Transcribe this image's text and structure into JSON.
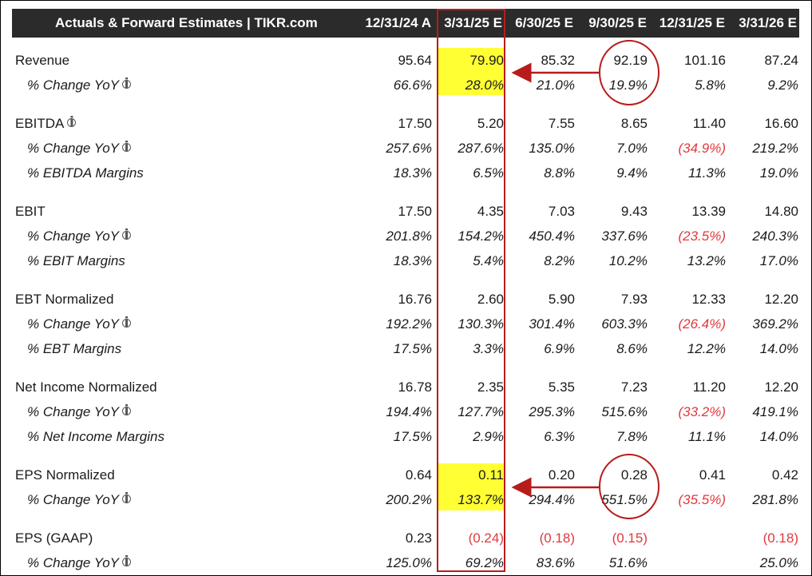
{
  "header": {
    "title": "Actuals & Forward Estimates | TIKR.com",
    "columns": [
      "12/31/24 A",
      "3/31/25 E",
      "6/30/25 E",
      "9/30/25 E",
      "12/31/25 E",
      "3/31/26 E"
    ]
  },
  "colors": {
    "header_bg": "#2b2b2b",
    "highlight": "#ffff33",
    "annotation_red": "#b71c1c",
    "negative_text": "#e0393e"
  },
  "rows": [
    {
      "label": "Revenue",
      "info": false,
      "sub": false,
      "values": [
        "95.64",
        "79.90",
        "85.32",
        "92.19",
        "101.16",
        "87.24"
      ]
    },
    {
      "label": "% Change YoY",
      "info": true,
      "sub": true,
      "values": [
        "66.6%",
        "28.0%",
        "21.0%",
        "19.9%",
        "5.8%",
        "9.2%"
      ]
    },
    {
      "label": "EBITDA",
      "info": true,
      "sub": false,
      "values": [
        "17.50",
        "5.20",
        "7.55",
        "8.65",
        "11.40",
        "16.60"
      ]
    },
    {
      "label": "% Change YoY",
      "info": true,
      "sub": true,
      "values": [
        "257.6%",
        "287.6%",
        "135.0%",
        "7.0%",
        "(34.9%)",
        "219.2%"
      ]
    },
    {
      "label": "% EBITDA Margins",
      "info": false,
      "sub": true,
      "values": [
        "18.3%",
        "6.5%",
        "8.8%",
        "9.4%",
        "11.3%",
        "19.0%"
      ]
    },
    {
      "label": "EBIT",
      "info": false,
      "sub": false,
      "values": [
        "17.50",
        "4.35",
        "7.03",
        "9.43",
        "13.39",
        "14.80"
      ]
    },
    {
      "label": "% Change YoY",
      "info": true,
      "sub": true,
      "values": [
        "201.8%",
        "154.2%",
        "450.4%",
        "337.6%",
        "(23.5%)",
        "240.3%"
      ]
    },
    {
      "label": "% EBIT Margins",
      "info": false,
      "sub": true,
      "values": [
        "18.3%",
        "5.4%",
        "8.2%",
        "10.2%",
        "13.2%",
        "17.0%"
      ]
    },
    {
      "label": "EBT Normalized",
      "info": false,
      "sub": false,
      "values": [
        "16.76",
        "2.60",
        "5.90",
        "7.93",
        "12.33",
        "12.20"
      ]
    },
    {
      "label": "% Change YoY",
      "info": true,
      "sub": true,
      "values": [
        "192.2%",
        "130.3%",
        "301.4%",
        "603.3%",
        "(26.4%)",
        "369.2%"
      ]
    },
    {
      "label": "% EBT Margins",
      "info": false,
      "sub": true,
      "values": [
        "17.5%",
        "3.3%",
        "6.9%",
        "8.6%",
        "12.2%",
        "14.0%"
      ]
    },
    {
      "label": "Net Income Normalized",
      "info": false,
      "sub": false,
      "values": [
        "16.78",
        "2.35",
        "5.35",
        "7.23",
        "11.20",
        "12.20"
      ]
    },
    {
      "label": "% Change YoY",
      "info": true,
      "sub": true,
      "values": [
        "194.4%",
        "127.7%",
        "295.3%",
        "515.6%",
        "(33.2%)",
        "419.1%"
      ]
    },
    {
      "label": "% Net Income Margins",
      "info": false,
      "sub": true,
      "values": [
        "17.5%",
        "2.9%",
        "6.3%",
        "7.8%",
        "11.1%",
        "14.0%"
      ]
    },
    {
      "label": "EPS Normalized",
      "info": false,
      "sub": false,
      "values": [
        "0.64",
        "0.11",
        "0.20",
        "0.28",
        "0.41",
        "0.42"
      ]
    },
    {
      "label": "% Change YoY",
      "info": true,
      "sub": true,
      "values": [
        "200.2%",
        "133.7%",
        "294.4%",
        "551.5%",
        "(35.5%)",
        "281.8%"
      ]
    },
    {
      "label": "EPS (GAAP)",
      "info": false,
      "sub": false,
      "values": [
        "0.23",
        "(0.24)",
        "(0.18)",
        "(0.15)",
        "",
        "(0.18)"
      ]
    },
    {
      "label": "% Change YoY",
      "info": true,
      "sub": true,
      "values": [
        "125.0%",
        "69.2%",
        "83.6%",
        "51.6%",
        "",
        "25.0%"
      ]
    }
  ]
}
